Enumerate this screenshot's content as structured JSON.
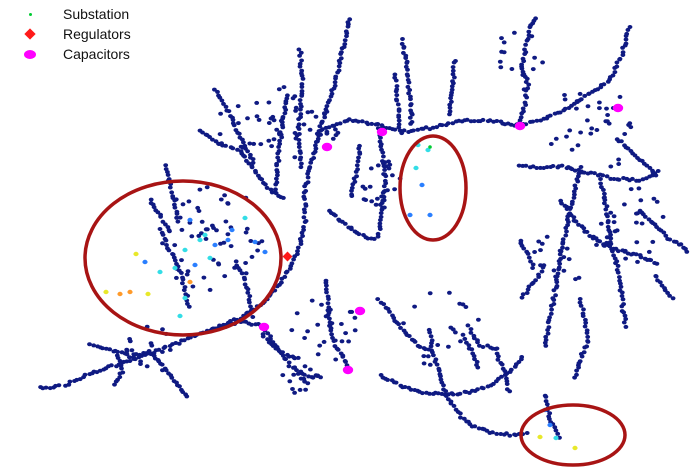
{
  "legend": {
    "items": [
      {
        "label": "Substation",
        "marker": "dot",
        "color": "#00cc33"
      },
      {
        "label": "Regulators",
        "marker": "diamond",
        "color": "#ff1a1a"
      },
      {
        "label": "Capacitors",
        "marker": "ellipse",
        "color": "#ff00ff"
      }
    ]
  },
  "colors": {
    "node": "#0f1a82",
    "node_alt": "#1d3fc0",
    "highlight_circle": "#a81414",
    "voltage_cyan": "#33dde6",
    "voltage_blue": "#2a7fff",
    "voltage_orange": "#ff9a2a",
    "voltage_yellow": "#e8e82a"
  },
  "network": {
    "node_count_approx": 1800,
    "highlight_regions": 3
  }
}
